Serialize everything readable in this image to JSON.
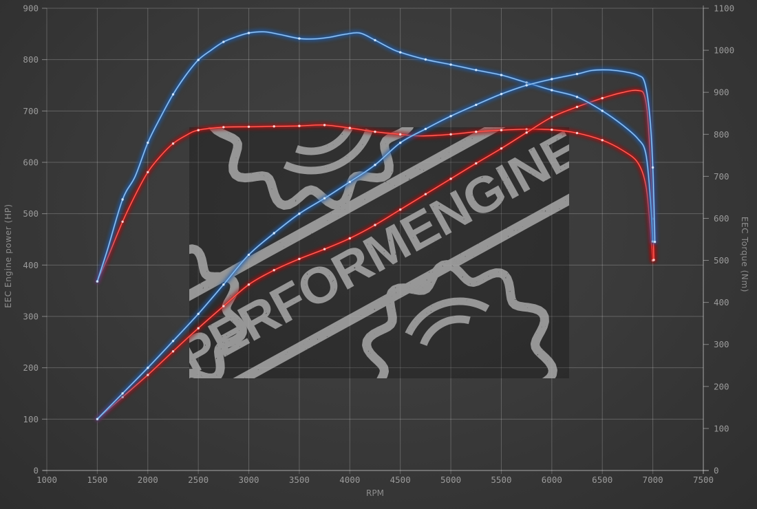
{
  "watermark": {
    "text": "PERFORMENGINE"
  },
  "chart_data": {
    "type": "line",
    "title": "",
    "xlabel": "RPM",
    "ylabel_left": "EEC Engine power (HP)",
    "ylabel_right": "EEC Torque (Nm)",
    "grid": true,
    "legend": "none",
    "x_range": [
      1000,
      7500
    ],
    "x_ticks": [
      1000,
      1500,
      2000,
      2500,
      3000,
      3500,
      4000,
      4500,
      5000,
      5500,
      6000,
      6500,
      7000,
      7500
    ],
    "y_left_range": [
      0,
      900
    ],
    "y_left_ticks": [
      0,
      100,
      200,
      300,
      400,
      500,
      600,
      700,
      800,
      900
    ],
    "y_right_range": [
      0,
      1100
    ],
    "y_right_ticks": [
      0,
      100,
      200,
      300,
      400,
      500,
      600,
      700,
      800,
      900,
      1000,
      1100
    ],
    "colors": {
      "blue_core": "#4e90d8",
      "blue_glow": "#1e5caa",
      "blue_bright": "#b9d7f3",
      "blue_dot": "#d9ecff",
      "red_core": "#e02222",
      "red_glow": "#a80f0f",
      "red_bright": "#ff8a7a",
      "red_dot": "#ffdede",
      "grid": "#6f6f6f",
      "tick_text": "#9b9b9b",
      "watermark_ink": "#b4b4b4"
    },
    "series": [
      {
        "name": "red-torque",
        "axis": "right",
        "color_key": "red",
        "unit": "Nm",
        "points": [
          [
            1500,
            450
          ],
          [
            1600,
            505
          ],
          [
            1750,
            592
          ],
          [
            1875,
            655
          ],
          [
            2000,
            710
          ],
          [
            2125,
            748
          ],
          [
            2250,
            778
          ],
          [
            2375,
            797
          ],
          [
            2500,
            810
          ],
          [
            2750,
            817
          ],
          [
            3000,
            818
          ],
          [
            3250,
            819
          ],
          [
            3500,
            820
          ],
          [
            3750,
            822
          ],
          [
            4000,
            815
          ],
          [
            4250,
            806
          ],
          [
            4500,
            800
          ],
          [
            4700,
            796
          ],
          [
            5000,
            800
          ],
          [
            5250,
            806
          ],
          [
            5500,
            810
          ],
          [
            5750,
            812
          ],
          [
            6000,
            811
          ],
          [
            6250,
            803
          ],
          [
            6500,
            786
          ],
          [
            6700,
            762
          ],
          [
            6850,
            733
          ],
          [
            6930,
            680
          ],
          [
            6970,
            590
          ],
          [
            7000,
            500
          ]
        ]
      },
      {
        "name": "red-power",
        "axis": "left",
        "color_key": "red",
        "unit": "HP",
        "points": [
          [
            1500,
            100
          ],
          [
            1750,
            143
          ],
          [
            2000,
            186
          ],
          [
            2250,
            232
          ],
          [
            2500,
            277
          ],
          [
            2750,
            320
          ],
          [
            3000,
            362
          ],
          [
            3250,
            390
          ],
          [
            3500,
            412
          ],
          [
            3750,
            431
          ],
          [
            4000,
            452
          ],
          [
            4250,
            478
          ],
          [
            4500,
            508
          ],
          [
            4750,
            538
          ],
          [
            5000,
            568
          ],
          [
            5250,
            598
          ],
          [
            5500,
            627
          ],
          [
            5750,
            658
          ],
          [
            6000,
            688
          ],
          [
            6250,
            708
          ],
          [
            6500,
            725
          ],
          [
            6700,
            736
          ],
          [
            6850,
            740
          ],
          [
            6920,
            728
          ],
          [
            6960,
            660
          ],
          [
            7000,
            490
          ],
          [
            7010,
            410
          ]
        ]
      },
      {
        "name": "blue-torque",
        "axis": "right",
        "color_key": "blue",
        "unit": "Nm",
        "points": [
          [
            1500,
            450
          ],
          [
            1600,
            525
          ],
          [
            1750,
            645
          ],
          [
            1875,
            700
          ],
          [
            2000,
            780
          ],
          [
            2125,
            840
          ],
          [
            2250,
            895
          ],
          [
            2375,
            940
          ],
          [
            2500,
            977
          ],
          [
            2625,
            1000
          ],
          [
            2750,
            1020
          ],
          [
            2875,
            1032
          ],
          [
            3000,
            1041
          ],
          [
            3150,
            1044
          ],
          [
            3300,
            1038
          ],
          [
            3500,
            1028
          ],
          [
            3650,
            1027
          ],
          [
            3800,
            1031
          ],
          [
            3950,
            1038
          ],
          [
            4100,
            1041
          ],
          [
            4250,
            1024
          ],
          [
            4400,
            1005
          ],
          [
            4500,
            995
          ],
          [
            4750,
            978
          ],
          [
            5000,
            966
          ],
          [
            5250,
            953
          ],
          [
            5500,
            941
          ],
          [
            5750,
            923
          ],
          [
            6000,
            905
          ],
          [
            6250,
            889
          ],
          [
            6500,
            856
          ],
          [
            6700,
            822
          ],
          [
            6850,
            790
          ],
          [
            6930,
            755
          ],
          [
            6975,
            650
          ],
          [
            7000,
            545
          ]
        ]
      },
      {
        "name": "blue-power",
        "axis": "left",
        "color_key": "blue",
        "unit": "HP",
        "points": [
          [
            1500,
            100
          ],
          [
            1750,
            150
          ],
          [
            2000,
            200
          ],
          [
            2250,
            252
          ],
          [
            2500,
            305
          ],
          [
            2750,
            362
          ],
          [
            3000,
            420
          ],
          [
            3250,
            462
          ],
          [
            3500,
            500
          ],
          [
            3750,
            530
          ],
          [
            4000,
            562
          ],
          [
            4250,
            595
          ],
          [
            4500,
            638
          ],
          [
            4750,
            665
          ],
          [
            5000,
            690
          ],
          [
            5250,
            712
          ],
          [
            5500,
            733
          ],
          [
            5750,
            750
          ],
          [
            6000,
            762
          ],
          [
            6250,
            772
          ],
          [
            6400,
            779
          ],
          [
            6550,
            780
          ],
          [
            6700,
            777
          ],
          [
            6850,
            770
          ],
          [
            6920,
            755
          ],
          [
            6970,
            690
          ],
          [
            7000,
            590
          ],
          [
            7020,
            445
          ]
        ]
      }
    ]
  }
}
